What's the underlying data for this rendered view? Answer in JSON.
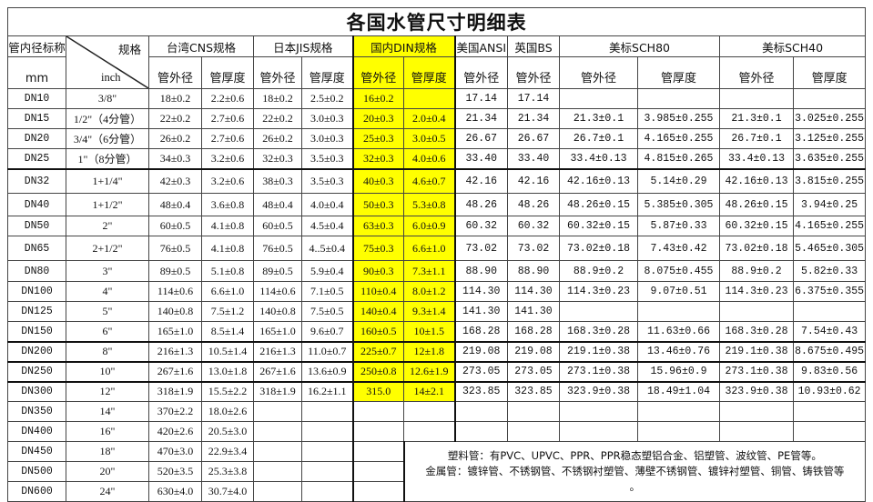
{
  "title": "各国水管尺寸明细表",
  "highlight_color": "#ffff00",
  "header": {
    "nominal": "管内径标称",
    "nominal_unit": "mm",
    "spec": "规格",
    "spec_unit": "inch",
    "groups": [
      "台湾CNS规格",
      "日本JIS规格",
      "国内DIN规格",
      "美国ANSI",
      "英国BS",
      "美标SCH80",
      "美标SCH40"
    ],
    "od": "管外径",
    "wall": "管厚度"
  },
  "rows": [
    [
      "DN10",
      "3/8\"",
      "18±0.2",
      "2.2±0.6",
      "18±0.2",
      "2.5±0.2",
      "16±0.2",
      "",
      "17.14",
      "17.14",
      "",
      "",
      "",
      ""
    ],
    [
      "DN15",
      "1/2\"（4分管）",
      "22±0.2",
      "2.7±0.6",
      "22±0.2",
      "3.0±0.3",
      "20±0.3",
      "2.0±0.4",
      "21.34",
      "21.34",
      "21.3±0.1",
      "3.985±0.255",
      "21.3±0.1",
      "3.025±0.255"
    ],
    [
      "DN20",
      "3/4\"（6分管）",
      "26±0.2",
      "2.7±0.6",
      "26±0.2",
      "3.0±0.3",
      "25±0.3",
      "3.0±0.5",
      "26.67",
      "26.67",
      "26.7±0.1",
      "4.165±0.255",
      "26.7±0.1",
      "3.125±0.255"
    ],
    [
      "DN25",
      "1\"（8分管）",
      "34±0.3",
      "3.2±0.6",
      "32±0.3",
      "3.5±0.3",
      "32±0.3",
      "4.0±0.6",
      "33.40",
      "33.40",
      "33.4±0.13",
      "4.815±0.265",
      "33.4±0.13",
      "3.635±0.255"
    ],
    [
      "DN32",
      "1+1/4\"",
      "42±0.3",
      "3.2±0.6",
      "38±0.3",
      "3.5±0.3",
      "40±0.3",
      "4.6±0.7",
      "42.16",
      "42.16",
      "42.16±0.13",
      "5.14±0.29",
      "42.16±0.13",
      "3.815±0.255"
    ],
    [
      "DN40",
      "1+1/2\"",
      "48±0.4",
      "3.6±0.8",
      "48±0.4",
      "4.0±0.4",
      "50±0.3",
      "5.3±0.8",
      "48.26",
      "48.26",
      "48.26±0.15",
      "5.385±0.305",
      "48.26±0.15",
      "3.94±0.25"
    ],
    [
      "DN50",
      "2\"",
      "60±0.5",
      "4.1±0.8",
      "60±0.5",
      "4.5±0.4",
      "63±0.3",
      "6.0±0.9",
      "60.32",
      "60.32",
      "60.32±0.15",
      "5.87±0.33",
      "60.32±0.15",
      "4.165±0.255"
    ],
    [
      "DN65",
      "2+1/2\"",
      "76±0.5",
      "4.1±0.8",
      "76±0.5",
      "4..5±0.4",
      "75±0.3",
      "6.6±1.0",
      "73.02",
      "73.02",
      "73.02±0.18",
      "7.43±0.42",
      "73.02±0.18",
      "5.465±0.305"
    ],
    [
      "DN80",
      "3\"",
      "89±0.5",
      "5.1±0.8",
      "89±0.5",
      "5.9±0.4",
      "90±0.3",
      "7.3±1.1",
      "88.90",
      "88.90",
      "88.9±0.2",
      "8.075±0.455",
      "88.9±0.2",
      "5.82±0.33"
    ],
    [
      "DN100",
      "4\"",
      "114±0.6",
      "6.6±1.0",
      "114±0.6",
      "7.1±0.5",
      "110±0.4",
      "8.0±1.2",
      "114.30",
      "114.30",
      "114.3±0.23",
      "9.07±0.51",
      "114.3±0.23",
      "6.375±0.355"
    ],
    [
      "DN125",
      "5\"",
      "140±0.8",
      "7.5±1.2",
      "140±0.8",
      "7.5±0.5",
      "140±0.4",
      "9.3±1.4",
      "141.30",
      "141.30",
      "",
      "",
      "",
      ""
    ],
    [
      "DN150",
      "6\"",
      "165±1.0",
      "8.5±1.4",
      "165±1.0",
      "9.6±0.7",
      "160±0.5",
      "10±1.5",
      "168.28",
      "168.28",
      "168.3±0.28",
      "11.63±0.66",
      "168.3±0.28",
      "7.54±0.43"
    ],
    [
      "DN200",
      "8\"",
      "216±1.3",
      "10.5±1.4",
      "216±1.3",
      "11.0±0.7",
      "225±0.7",
      "12±1.8",
      "219.08",
      "219.08",
      "219.1±0.38",
      "13.46±0.76",
      "219.1±0.38",
      "8.675±0.495"
    ],
    [
      "DN250",
      "10\"",
      "267±1.6",
      "13.0±1.8",
      "267±1.6",
      "13.6±0.9",
      "250±0.8",
      "12.6±1.9",
      "273.05",
      "273.05",
      "273.1±0.38",
      "15.96±0.9",
      "273.1±0.38",
      "9.83±0.56"
    ],
    [
      "DN300",
      "12\"",
      "318±1.9",
      "15.5±2.2",
      "318±1.9",
      "16.2±1.1",
      "315.0",
      "14±2.1",
      "323.85",
      "323.85",
      "323.9±0.38",
      "18.49±1.04",
      "323.9±0.38",
      "10.93±0.62"
    ],
    [
      "DN350",
      "14\"",
      "370±2.2",
      "18.0±2.6",
      "",
      "",
      "",
      "",
      "",
      "",
      "",
      "",
      "",
      ""
    ],
    [
      "DN400",
      "16\"",
      "420±2.6",
      "20.5±3.0",
      "",
      "",
      "",
      "",
      "",
      "",
      "",
      "",
      "",
      ""
    ],
    [
      "DN450",
      "18\"",
      "470±3.0",
      "22.9±3.4",
      "",
      "",
      ""
    ],
    [
      "DN500",
      "20\"",
      "520±3.5",
      "25.3±3.8",
      "",
      "",
      ""
    ],
    [
      "DN600",
      "24\"",
      "630±4.0",
      "30.7±4.0",
      "",
      "",
      ""
    ]
  ],
  "note": {
    "line1": "塑料管：有PVC、UPVC、PPR、PPR稳态塑铝合金、铝塑管、波纹管、PE管等。",
    "line2": "金属管：镀锌管、不锈钢管、不锈钢衬塑管、薄壁不锈钢管、镀锌衬塑管、铜管、铸铁管等",
    "line3": "。"
  }
}
